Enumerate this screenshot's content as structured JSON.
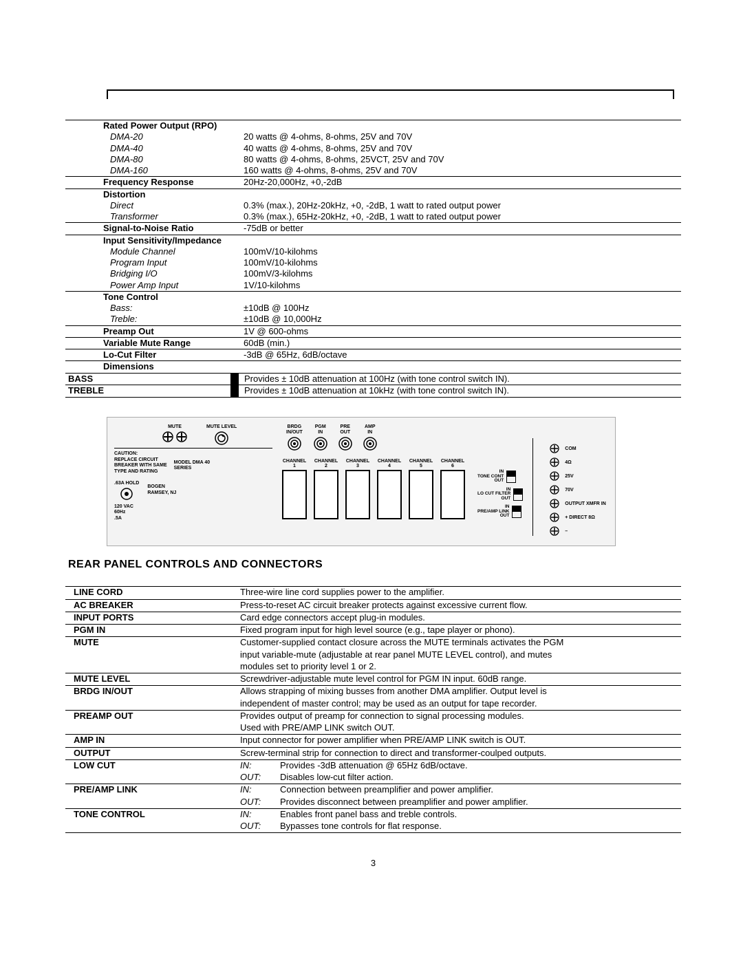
{
  "specs": {
    "rpo": {
      "header": "Rated Power Output (RPO)",
      "rows": [
        {
          "label": "DMA-20",
          "value": "20 watts @ 4-ohms, 8-ohms, 25V and 70V"
        },
        {
          "label": "DMA-40",
          "value": "40 watts @ 4-ohms, 8-ohms, 25V and 70V"
        },
        {
          "label": "DMA-80",
          "value": "80 watts @ 4-ohms, 8-ohms, 25VCT, 25V and 70V"
        },
        {
          "label": "DMA-160",
          "value": "160 watts @ 4-ohms, 8-ohms, 25V and 70V"
        }
      ]
    },
    "freq": {
      "label": "Frequency Response",
      "value": "20Hz-20,000Hz, +0,-2dB"
    },
    "dist": {
      "header": "Distortion",
      "rows": [
        {
          "label": "Direct",
          "value": "0.3% (max.), 20Hz-20kHz, +0, -2dB, 1 watt to rated output power"
        },
        {
          "label": "Transformer",
          "value": "0.3% (max.), 65Hz-20kHz, +0, -2dB, 1 watt to rated output power"
        }
      ]
    },
    "snr": {
      "label": "Signal-to-Noise Ratio",
      "value": "-75dB or better"
    },
    "input": {
      "header": "Input Sensitivity/Impedance",
      "rows": [
        {
          "label": "Module Channel",
          "value": "100mV/10-kilohms"
        },
        {
          "label": "Program Input",
          "value": "100mV/10-kilohms"
        },
        {
          "label": "Bridging I/O",
          "value": "100mV/3-kilohms"
        },
        {
          "label": "Power Amp Input",
          "value": "1V/10-kilohms"
        }
      ]
    },
    "tone": {
      "header": "Tone Control",
      "rows": [
        {
          "label": "Bass:",
          "value": "±10dB @  100Hz"
        },
        {
          "label": "Treble:",
          "value": "±10dB @ 10,000Hz"
        }
      ]
    },
    "preamp": {
      "label": "Preamp Out",
      "value": "1V @ 600-ohms"
    },
    "mute": {
      "label": "Variable Mute Range",
      "value": "60dB (min.)"
    },
    "locut": {
      "label": "Lo-Cut Filter",
      "value": "-3dB @ 65Hz, 6dB/octave"
    },
    "dim": {
      "label": "Dimensions",
      "value": ""
    }
  },
  "tone_rows": [
    {
      "label": "BASS",
      "desc": "Provides ± 10dB attenuation at 100Hz (with tone control switch IN)."
    },
    {
      "label": "TREBLE",
      "desc": "Provides ± 10dB attenuation at 10kHz (with tone control switch IN)."
    }
  ],
  "fig": {
    "mute": "MUTE",
    "mutelevel": "MUTE LEVEL",
    "caution": "CAUTION:",
    "caution_lines": [
      "REPLACE CIRCUIT",
      "BREAKER WITH SAME",
      "TYPE AND RATING"
    ],
    "hold": ".63A HOLD",
    "model_lines": [
      "MODEL DMA 40",
      "SERIES"
    ],
    "brand_lines": [
      "BOGEN",
      "RAMSEY, NJ"
    ],
    "power_lines": [
      "120 VAC",
      "60Hz",
      ".5A"
    ],
    "jacks": [
      {
        "l1": "BRDG",
        "l2": "IN/OUT"
      },
      {
        "l1": "PGM",
        "l2": "IN"
      },
      {
        "l1": "PRE",
        "l2": "OUT"
      },
      {
        "l1": "AMP",
        "l2": "IN"
      }
    ],
    "channels": [
      "CHANNEL 1",
      "CHANNEL 2",
      "CHANNEL 3",
      "CHANNEL 4",
      "CHANNEL 5",
      "CHANNEL 6"
    ],
    "switches": [
      {
        "top": "IN",
        "mid": "TONE CONT",
        "bot": "OUT"
      },
      {
        "top": "IN",
        "mid": "LO CUT FILTER",
        "bot": "OUT"
      },
      {
        "top": "IN",
        "mid": "PRE/AMP LINK",
        "bot": "OUT"
      }
    ],
    "screws": [
      "COM",
      "4Ω",
      "25V",
      "70V",
      "OUTPUT XMFR IN",
      "+ DIRECT 8Ω",
      "–"
    ]
  },
  "rp_heading": "REAR PANEL CONTROLS AND CONNECTORS",
  "rpd": [
    {
      "label": "LINE CORD",
      "lines": [
        {
          "m": "",
          "t": "Three-wire line cord supplies power to the amplifier."
        }
      ]
    },
    {
      "label": "AC BREAKER",
      "lines": [
        {
          "m": "",
          "t": "Press-to-reset AC circuit breaker protects against excessive current flow."
        }
      ]
    },
    {
      "label": "INPUT PORTS",
      "lines": [
        {
          "m": "",
          "t": "Card edge connectors accept plug-in modules."
        }
      ]
    },
    {
      "label": "PGM IN",
      "lines": [
        {
          "m": "",
          "t": "Fixed program input for high level source (e.g., tape player or phono)."
        }
      ]
    },
    {
      "label": "MUTE",
      "lines": [
        {
          "m": "",
          "t": "Customer-supplied contact closure across the MUTE terminals activates the PGM"
        },
        {
          "m": "",
          "t": "input variable-mute (adjustable at rear panel MUTE LEVEL control), and mutes"
        },
        {
          "m": "",
          "t": "modules set to priority level 1 or 2."
        }
      ]
    },
    {
      "label": "MUTE LEVEL",
      "lines": [
        {
          "m": "",
          "t": "Screwdriver-adjustable mute level control for PGM IN input. 60dB range."
        }
      ]
    },
    {
      "label": "BRDG IN/OUT",
      "lines": [
        {
          "m": "",
          "t": "Allows strapping of mixing busses from another DMA amplifier. Output level is"
        },
        {
          "m": "",
          "t": "independent of master control; may be used as an output for tape recorder."
        }
      ]
    },
    {
      "label": "PREAMP OUT",
      "lines": [
        {
          "m": "",
          "t": "Provides output of preamp for connection to signal processing modules."
        },
        {
          "m": "",
          "t": "Used with PRE/AMP LINK switch OUT."
        }
      ]
    },
    {
      "label": "AMP IN",
      "lines": [
        {
          "m": "",
          "t": "Input connector for power amplifier when PRE/AMP LINK switch is OUT."
        }
      ]
    },
    {
      "label": "OUTPUT",
      "lines": [
        {
          "m": "",
          "t": "Screw-terminal strip for connection to direct and transformer-coulped outputs."
        }
      ]
    },
    {
      "label": "LOW CUT",
      "lines": [
        {
          "m": "IN:",
          "t": "Provides -3dB attenuation @ 65Hz 6dB/octave."
        },
        {
          "m": "OUT:",
          "t": "Disables low-cut filter action."
        }
      ]
    },
    {
      "label": "PRE/AMP LINK",
      "lines": [
        {
          "m": "IN:",
          "t": "Connection between preamplifier and power amplifier."
        },
        {
          "m": "OUT:",
          "t": "Provides disconnect between preamplifier and power amplifier."
        }
      ]
    },
    {
      "label": "TONE CONTROL",
      "lines": [
        {
          "m": "IN:",
          "t": "Enables front panel bass and treble controls."
        },
        {
          "m": "OUT:",
          "t": "Bypasses tone controls for flat response."
        }
      ]
    }
  ],
  "page_number": "3"
}
